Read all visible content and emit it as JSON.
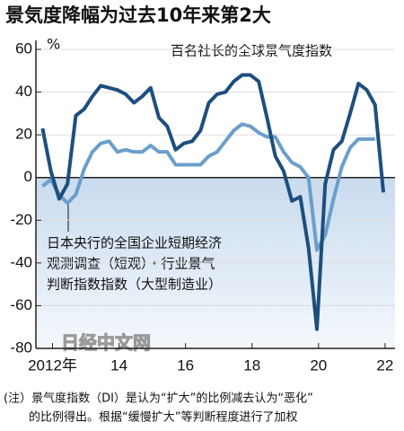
{
  "chart_data": {
    "type": "line",
    "title": "景気度降幅为过去10年来第2大",
    "y_unit": "%",
    "annotations": [
      "百名社长的全球景气度指数",
      "日本央行的全国企业短期经济",
      "观测调查（短观）・行业景气",
      "判断指数指数（大型制造业）"
    ],
    "watermark": "日经中文网",
    "note": [
      "(注）景气度指数（DI）是认为“扩大”的比例减去认为“恶化”",
      "的比例得出。根据“缓慢扩大”等判断程度进行了加权"
    ],
    "x": [
      2011.7,
      2011.95,
      2012.2,
      2012.45,
      2012.7,
      2012.95,
      2013.2,
      2013.45,
      2013.7,
      2013.95,
      2014.2,
      2014.45,
      2014.7,
      2014.95,
      2015.2,
      2015.45,
      2015.7,
      2015.95,
      2016.2,
      2016.45,
      2016.7,
      2016.95,
      2017.2,
      2017.45,
      2017.7,
      2017.95,
      2018.2,
      2018.45,
      2018.7,
      2018.95,
      2019.2,
      2019.45,
      2019.7,
      2019.95,
      2020.2,
      2020.45,
      2020.7,
      2020.95,
      2021.2,
      2021.45,
      2021.7,
      2021.95
    ],
    "series": [
      {
        "name": "百名社长的全球景气度指数",
        "color": "#1d4f7e",
        "values": [
          23,
          3,
          -10,
          -3,
          29,
          32,
          38,
          43,
          42,
          41,
          39,
          35,
          38,
          42,
          28,
          24,
          13,
          16,
          17,
          22,
          35,
          39,
          40,
          45,
          48,
          48,
          45,
          28,
          10,
          3,
          -11,
          -9,
          -33,
          -71,
          -3,
          13,
          17,
          30,
          44,
          41,
          34,
          -7
        ]
      },
      {
        "name": "日本央行的全国企业短期经济观测调查（短观）・行业景气判断指数指数（大型制造业）",
        "color": "#6b9fcc",
        "values": [
          -4,
          -1,
          -8,
          -12,
          -8,
          4,
          12,
          16,
          17,
          12,
          13,
          12,
          12,
          15,
          12,
          12,
          6,
          6,
          6,
          6,
          10,
          12,
          17,
          22,
          25,
          24,
          21,
          19,
          19,
          12,
          7,
          5,
          0,
          -34,
          -27,
          -10,
          5,
          14,
          18,
          18,
          18,
          null
        ]
      }
    ],
    "xlim": [
      2011.5,
      2022.3
    ],
    "xticks": [
      {
        "value": 2012,
        "label": "2012年"
      },
      {
        "value": 2014,
        "label": "14"
      },
      {
        "value": 2016,
        "label": "16"
      },
      {
        "value": 2018,
        "label": "18"
      },
      {
        "value": 2020,
        "label": "20"
      },
      {
        "value": 2022,
        "label": "22"
      }
    ],
    "ylim": [
      -80,
      60
    ],
    "yticks": [
      -80,
      -60,
      -40,
      -20,
      0,
      20,
      40,
      60
    ],
    "grid": true
  }
}
